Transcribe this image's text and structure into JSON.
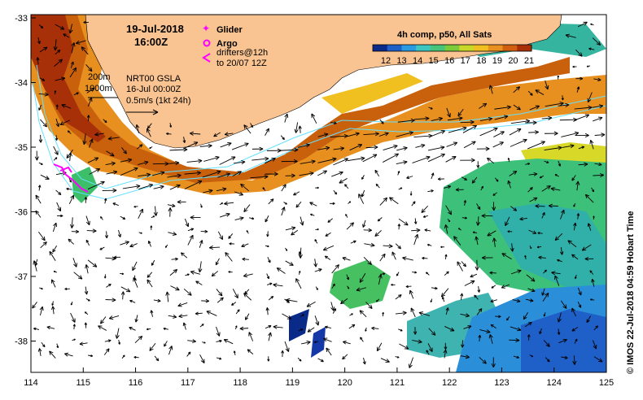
{
  "header": {
    "date": "19-Jul-2018",
    "time": "16:00Z"
  },
  "legend": {
    "glider_label": "Glider",
    "argo_label": "Argo",
    "drifters_label": "drifters@12h",
    "drifters_range": "to 20/07 12Z",
    "glider_color": "#ff00ff",
    "argo_color": "#ff00ff"
  },
  "isobaths": {
    "label_200": "200m",
    "label_1000": "1000m",
    "color": "#66e0ff"
  },
  "gsla": {
    "product": "NRT00 GSLA",
    "date": "16-Jul 00:00Z",
    "scale": "0.5m/s (1kt 24h)"
  },
  "colorbar": {
    "title": "4h comp, p50, All Sats",
    "ticks": [
      "12",
      "13",
      "14",
      "15",
      "16",
      "17",
      "18",
      "19",
      "20",
      "21"
    ],
    "colors": [
      "#0a2a8a",
      "#1f5fc8",
      "#2a9be0",
      "#3dc7c0",
      "#45c47a",
      "#7ccb3a",
      "#c8d828",
      "#f0c020",
      "#e89020",
      "#d06010",
      "#a83008"
    ]
  },
  "axes": {
    "x_ticks": [
      "114",
      "115",
      "116",
      "117",
      "118",
      "119",
      "120",
      "121",
      "122",
      "123",
      "124",
      "125"
    ],
    "y_ticks": [
      "-33",
      "-34",
      "-35",
      "-36",
      "-37",
      "-38"
    ]
  },
  "credit": "© IMOS 22-Jul-2018 04:59 Hobart Time",
  "colors": {
    "land": "#f9c491",
    "frame": "#000000",
    "arrow": "#000000"
  }
}
